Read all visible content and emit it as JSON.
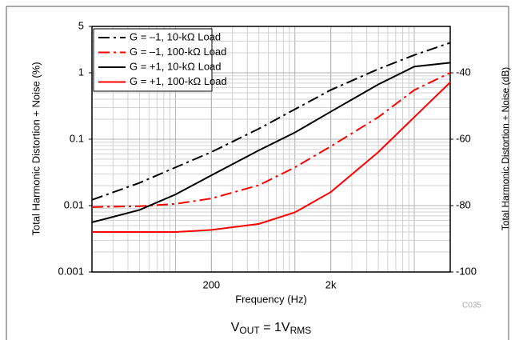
{
  "chart_data": {
    "type": "line",
    "xlabel": "Frequency (Hz)",
    "ylabel": "Total Harmonic Distortion + Noise (%)",
    "y2label": "Total Harmonic Distortion + Noise (dB)",
    "figure_id": "C035",
    "annotation": [
      "V",
      "OUT",
      " = 1V",
      "RMS"
    ],
    "xscale": "log",
    "yscale": "log",
    "grid": true,
    "legend": "upper left",
    "x": [
      20,
      50,
      100,
      200,
      500,
      1000,
      2000,
      5000,
      10000,
      20000
    ],
    "xlim": [
      20,
      20000
    ],
    "xticks": [
      200,
      {
        "value": 2000,
        "label": "2k"
      }
    ],
    "ylim": [
      0.001,
      5
    ],
    "yticks": [
      0.001,
      0.01,
      0.1,
      1,
      5
    ],
    "y2lim": [
      -100,
      -26.02
    ],
    "y2ticks": [
      -40,
      -60,
      -80,
      -100
    ],
    "series": [
      {
        "name": "G = –1, 10-kΩ Load",
        "color": "#000000",
        "dash": "dashdot",
        "values": [
          0.0122,
          0.022,
          0.0376,
          0.064,
          0.144,
          0.282,
          0.552,
          1.14,
          1.85,
          2.84
        ]
      },
      {
        "name": "G = –1, 100-kΩ Load",
        "color": "#ff0000",
        "dash": "dashdot",
        "values": [
          0.0095,
          0.0098,
          0.0106,
          0.0128,
          0.0203,
          0.0376,
          0.078,
          0.215,
          0.55,
          1.0
        ]
      },
      {
        "name": "G = +1, 10-kΩ Load",
        "color": "#000000",
        "dash": "solid",
        "values": [
          0.0056,
          0.0086,
          0.0147,
          0.0286,
          0.068,
          0.126,
          0.26,
          0.67,
          1.24,
          1.42
        ]
      },
      {
        "name": "G = +1, 100-kΩ Load",
        "color": "#ff0000",
        "dash": "solid",
        "values": [
          0.004,
          0.004,
          0.004,
          0.0043,
          0.0053,
          0.0079,
          0.016,
          0.064,
          0.215,
          0.72
        ]
      }
    ]
  }
}
